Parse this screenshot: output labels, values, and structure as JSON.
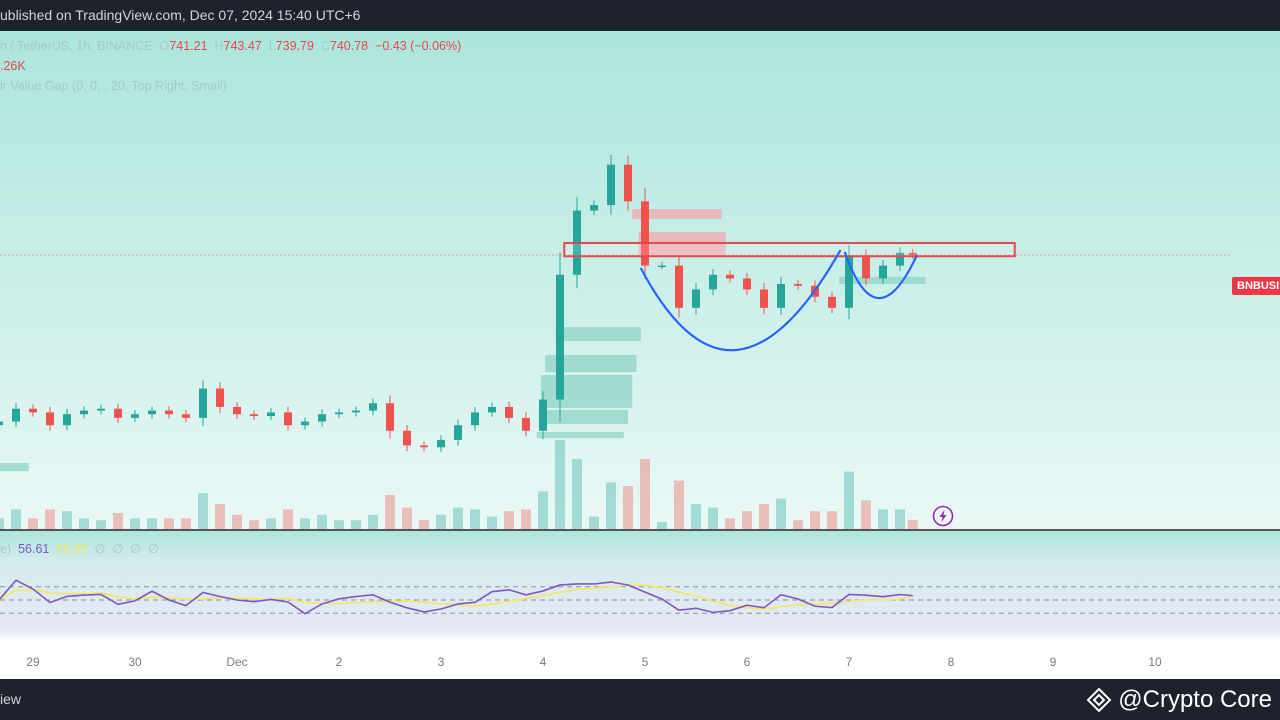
{
  "header": {
    "published": "ublished on TradingView.com, Dec 07, 2024 15:40 UTC+6"
  },
  "legend": {
    "symbol": "n / TetherUS, 1h, BINANCE",
    "o_label": "O",
    "o": "741.21",
    "h_label": "H",
    "h": "743.47",
    "l_label": "L",
    "l": "739.79",
    "c_label": "C",
    "c": "740.78",
    "change": "−0.43 (−0.06%)",
    "volume": ".26K",
    "indicator": "ir Value Gap (0, 0, , 20, Top Right, Small)"
  },
  "rsi_legend": {
    "name": "e)",
    "rsi": "56.61",
    "ma": "55.68",
    "empty": [
      "∅",
      "∅",
      "∅",
      "∅"
    ]
  },
  "price_label": "BNBUSI",
  "bottom": {
    "brand": "iew",
    "watermark": "@Crypto Core"
  },
  "colors": {
    "up": "#26a69a",
    "down": "#ef5350",
    "rsi": "#7e57c2",
    "rsi_ma": "#f5e663",
    "cup": "#2962ff",
    "zone": "#e5484d",
    "fvg_bull": "#8fd3c6",
    "fvg_bear": "#f1a5ad",
    "price_label": "#f23645"
  },
  "icons": {
    "lightning": "lightning-icon",
    "watermark": "binance-diamond-icon"
  },
  "chart_data": {
    "type": "candlestick",
    "interval": "1h (drawn as 4h aggregates)",
    "x_ticks": [
      "29",
      "30",
      "Dec",
      "2",
      "3",
      "4",
      "5",
      "6",
      "7",
      "8",
      "9",
      "10"
    ],
    "last_price": 740.78,
    "closes": [
      [
        "2024-11-28T16:00",
        650
      ],
      [
        "2024-11-28T20:00",
        657
      ],
      [
        "2024-11-29T00:00",
        655
      ],
      [
        "2024-11-29T04:00",
        648
      ],
      [
        "2024-11-29T08:00",
        654
      ],
      [
        "2024-11-29T12:00",
        656
      ],
      [
        "2024-11-29T16:00",
        657
      ],
      [
        "2024-11-29T20:00",
        652
      ],
      [
        "2024-11-30T00:00",
        654
      ],
      [
        "2024-11-30T04:00",
        656
      ],
      [
        "2024-11-30T08:00",
        654
      ],
      [
        "2024-11-30T12:00",
        652
      ],
      [
        "2024-11-30T16:00",
        668
      ],
      [
        "2024-11-30T20:00",
        658
      ],
      [
        "2024-12-01T00:00",
        654
      ],
      [
        "2024-12-01T04:00",
        653
      ],
      [
        "2024-12-01T08:00",
        655
      ],
      [
        "2024-12-01T12:00",
        648
      ],
      [
        "2024-12-01T16:00",
        650
      ],
      [
        "2024-12-01T20:00",
        654
      ],
      [
        "2024-12-02T00:00",
        655
      ],
      [
        "2024-12-02T04:00",
        656
      ],
      [
        "2024-12-02T08:00",
        660
      ],
      [
        "2024-12-02T12:00",
        645
      ],
      [
        "2024-12-02T16:00",
        637
      ],
      [
        "2024-12-02T20:00",
        636
      ],
      [
        "2024-12-03T00:00",
        640
      ],
      [
        "2024-12-03T04:00",
        648
      ],
      [
        "2024-12-03T08:00",
        655
      ],
      [
        "2024-12-03T12:00",
        658
      ],
      [
        "2024-12-03T16:00",
        652
      ],
      [
        "2024-12-03T20:00",
        645
      ],
      [
        "2024-12-04T00:00",
        662
      ],
      [
        "2024-12-04T04:00",
        730
      ],
      [
        "2024-12-04T08:00",
        765
      ],
      [
        "2024-12-04T12:00",
        768
      ],
      [
        "2024-12-04T16:00",
        790
      ],
      [
        "2024-12-04T20:00",
        770
      ],
      [
        "2024-12-05T00:00",
        735
      ],
      [
        "2024-12-05T04:00",
        735
      ],
      [
        "2024-12-05T08:00",
        712
      ],
      [
        "2024-12-05T12:00",
        722
      ],
      [
        "2024-12-05T16:00",
        730
      ],
      [
        "2024-12-05T20:00",
        728
      ],
      [
        "2024-12-06T00:00",
        722
      ],
      [
        "2024-12-06T04:00",
        712
      ],
      [
        "2024-12-06T08:00",
        725
      ],
      [
        "2024-12-06T12:00",
        724
      ],
      [
        "2024-12-06T16:00",
        718
      ],
      [
        "2024-12-06T20:00",
        712
      ],
      [
        "2024-12-07T00:00",
        740
      ],
      [
        "2024-12-07T04:00",
        728
      ],
      [
        "2024-12-07T08:00",
        735
      ],
      [
        "2024-12-07T12:00",
        742
      ],
      [
        "2024-12-07T15:00",
        740.78
      ]
    ],
    "resistance_zone": {
      "from": "2024-12-04T05:00",
      "to": "2024-12-08T15:00",
      "low": 740.1,
      "high": 747.3
    },
    "fvg_bearish": [
      {
        "from": "2024-12-04T21:00",
        "to": "2024-12-05T18:00",
        "low": 760.4,
        "high": 765.8
      },
      {
        "from": "2024-12-04T22:30",
        "to": "2024-12-05T19:00",
        "low": 740.8,
        "high": 753.3
      }
    ],
    "fvg_bullish": [
      {
        "from": "2024-12-04T03:00",
        "to": "2024-12-04T23:00",
        "low": 693.9,
        "high": 701.5
      },
      {
        "from": "2024-12-04T00:30",
        "to": "2024-12-04T22:00",
        "low": 677,
        "high": 686.3
      },
      {
        "from": "2024-12-03T23:30",
        "to": "2024-12-04T21:00",
        "low": 657.4,
        "high": 675.4
      },
      {
        "from": "2024-12-03T23:00",
        "to": "2024-12-04T20:00",
        "low": 648.7,
        "high": 656.3
      },
      {
        "from": "2024-12-03T22:30",
        "to": "2024-12-04T19:00",
        "low": 641,
        "high": 644.3
      },
      {
        "from": "2024-12-06T21:40",
        "to": "2024-12-07T18:00",
        "low": 725,
        "high": 728.8
      },
      {
        "from": "2024-11-28T16:00",
        "to": "2024-11-28T23:00",
        "low": 623,
        "high": 627.4
      }
    ],
    "cup": [
      [
        "2024-12-04T23:00",
        733.7
      ],
      [
        "2024-12-05T21:30",
        689
      ],
      [
        "2024-12-06T22:00",
        743.5
      ]
    ],
    "handle": [
      [
        "2024-12-06T23:00",
        742.4
      ],
      [
        "2024-12-07T07:00",
        717.3
      ],
      [
        "2024-12-07T16:00",
        740.8
      ]
    ],
    "rsi": {
      "value": 56.61,
      "ma": 55.68,
      "levels": [
        70,
        50,
        30
      ],
      "range": [
        0,
        100
      ]
    }
  }
}
